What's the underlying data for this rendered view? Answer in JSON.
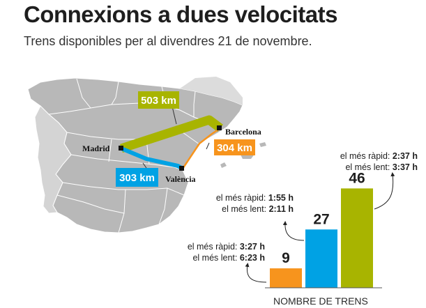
{
  "title": "Connexions a dues velocitats",
  "subtitle": "Trens disponibles per al divendres 21 de novembre.",
  "map": {
    "cities": {
      "madrid": "Madrid",
      "barcelona": "Barcelona",
      "valencia": "València"
    },
    "routes": {
      "madrid_barcelona": {
        "label": "503 km",
        "color": "#a8b400"
      },
      "madrid_valencia": {
        "label": "303 km",
        "color": "#00a2e4"
      },
      "valencia_barcelona": {
        "label": "304 km",
        "color": "#f7941d"
      }
    }
  },
  "chart_data": {
    "type": "bar",
    "xlabel": "NOMBRE DE TRENS",
    "ylim": [
      0,
      50
    ],
    "bars": [
      {
        "value": 9,
        "label": "9",
        "color": "#f7941d",
        "fastest_label": "el més ràpid:",
        "fastest": "3:27 h",
        "slowest_label": "el més lent:",
        "slowest": "6:23 h"
      },
      {
        "value": 27,
        "label": "27",
        "color": "#00a2e4",
        "fastest_label": "el més ràpid:",
        "fastest": "1:55 h",
        "slowest_label": "el més lent:",
        "slowest": "2:11 h"
      },
      {
        "value": 46,
        "label": "46",
        "color": "#a8b400",
        "fastest_label": "el més ràpid:",
        "fastest": "2:37 h",
        "slowest_label": "el més lent:",
        "slowest": "3:37 h"
      }
    ]
  }
}
